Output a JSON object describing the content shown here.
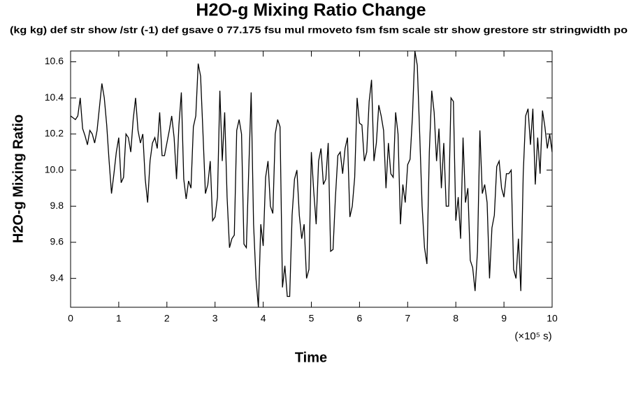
{
  "chart_data": {
    "type": "line",
    "title": "H2O-g Mixing Ratio Change",
    "subtitle": "(kg kg) def str show /str (-1) def gsave 0 77.175 fsu mul rmoveto fsm fsm scale str show grestore str stringwidth po",
    "x_label": "Time",
    "x_unit": "(×10⁵ s)",
    "y_label": "H2O-g Mixing Ratio",
    "color": "#000000",
    "xlim": [
      0,
      10
    ],
    "xticks": [
      0,
      1,
      2,
      3,
      4,
      5,
      6,
      7,
      8,
      9,
      10
    ],
    "ylim": [
      9.24,
      10.66
    ],
    "yticks": [
      {
        "value": 9.4,
        "label": "9.4"
      },
      {
        "value": 9.6,
        "label": "9.6"
      },
      {
        "value": 9.8,
        "label": "9.8"
      },
      {
        "value": 10.0,
        "label": "10.0"
      },
      {
        "value": 10.2,
        "label": "10.2"
      },
      {
        "value": 10.4,
        "label": "10.4"
      },
      {
        "value": 10.6,
        "label": "10.6"
      }
    ],
    "x": [
      0,
      0.05,
      0.1,
      0.15,
      0.2,
      0.25,
      0.3,
      0.35,
      0.4,
      0.45,
      0.5,
      0.55,
      0.6,
      0.65,
      0.7,
      0.75,
      0.8,
      0.85,
      0.9,
      0.95,
      1,
      1.05,
      1.1,
      1.15,
      1.2,
      1.25,
      1.3,
      1.35,
      1.4,
      1.45,
      1.5,
      1.55,
      1.6,
      1.65,
      1.7,
      1.75,
      1.8,
      1.85,
      1.9,
      1.95,
      2,
      2.05,
      2.1,
      2.15,
      2.2,
      2.25,
      2.3,
      2.35,
      2.4,
      2.45,
      2.5,
      2.55,
      2.6,
      2.65,
      2.7,
      2.75,
      2.8,
      2.85,
      2.9,
      2.95,
      3,
      3.05,
      3.1,
      3.15,
      3.2,
      3.25,
      3.3,
      3.35,
      3.4,
      3.45,
      3.5,
      3.55,
      3.6,
      3.65,
      3.7,
      3.75,
      3.8,
      3.85,
      3.9,
      3.95,
      4,
      4.05,
      4.1,
      4.15,
      4.2,
      4.25,
      4.3,
      4.35,
      4.4,
      4.45,
      4.5,
      4.55,
      4.6,
      4.65,
      4.7,
      4.75,
      4.8,
      4.85,
      4.9,
      4.95,
      5,
      5.05,
      5.1,
      5.15,
      5.2,
      5.25,
      5.3,
      5.35,
      5.4,
      5.45,
      5.5,
      5.55,
      5.6,
      5.65,
      5.7,
      5.75,
      5.8,
      5.85,
      5.9,
      5.95,
      6,
      6.05,
      6.1,
      6.15,
      6.2,
      6.25,
      6.3,
      6.35,
      6.4,
      6.45,
      6.5,
      6.55,
      6.6,
      6.65,
      6.7,
      6.75,
      6.8,
      6.85,
      6.9,
      6.95,
      7,
      7.05,
      7.1,
      7.15,
      7.2,
      7.25,
      7.3,
      7.35,
      7.4,
      7.45,
      7.5,
      7.55,
      7.6,
      7.65,
      7.7,
      7.75,
      7.8,
      7.85,
      7.9,
      7.95,
      8,
      8.05,
      8.1,
      8.15,
      8.2,
      8.25,
      8.3,
      8.35,
      8.4,
      8.45,
      8.5,
      8.55,
      8.6,
      8.65,
      8.7,
      8.75,
      8.8,
      8.85,
      8.9,
      8.95,
      9,
      9.05,
      9.1,
      9.15,
      9.2,
      9.25,
      9.3,
      9.35,
      9.4,
      9.45,
      9.5,
      9.55,
      9.6,
      9.65,
      9.7,
      9.75,
      9.8,
      9.85,
      9.9,
      9.95,
      10
    ],
    "values": [
      10.3,
      10.29,
      10.28,
      10.3,
      10.4,
      10.23,
      10.19,
      10.14,
      10.22,
      10.2,
      10.15,
      10.22,
      10.35,
      10.48,
      10.4,
      10.25,
      10.05,
      9.87,
      9.98,
      10.1,
      10.18,
      9.93,
      9.96,
      10.2,
      10.18,
      10.1,
      10.28,
      10.4,
      10.22,
      10.15,
      10.2,
      9.95,
      9.82,
      10.05,
      10.15,
      10.18,
      10.12,
      10.32,
      10.08,
      10.08,
      10.15,
      10.22,
      10.3,
      10.18,
      9.95,
      10.25,
      10.43,
      9.95,
      9.84,
      9.94,
      9.9,
      10.24,
      10.3,
      10.59,
      10.52,
      10.2,
      9.87,
      9.92,
      10.05,
      9.72,
      9.74,
      9.85,
      10.44,
      10.05,
      10.32,
      9.85,
      9.57,
      9.62,
      9.64,
      10.22,
      10.28,
      10.2,
      9.59,
      9.57,
      10.0,
      10.43,
      9.7,
      9.4,
      9.24,
      9.7,
      9.58,
      9.96,
      10.05,
      9.8,
      9.76,
      10.2,
      10.28,
      10.24,
      9.35,
      9.47,
      9.3,
      9.3,
      9.75,
      9.95,
      10.0,
      9.75,
      9.62,
      9.7,
      9.4,
      9.45,
      10.1,
      9.88,
      9.7,
      10.05,
      10.12,
      9.92,
      9.95,
      10.15,
      9.55,
      9.56,
      9.85,
      10.08,
      10.1,
      9.98,
      10.12,
      10.18,
      9.74,
      9.8,
      9.96,
      10.4,
      10.26,
      10.25,
      10.05,
      10.1,
      10.38,
      10.5,
      10.05,
      10.15,
      10.36,
      10.3,
      10.22,
      9.9,
      10.15,
      9.98,
      9.96,
      10.32,
      10.2,
      9.7,
      9.92,
      9.82,
      10.03,
      10.06,
      10.3,
      10.66,
      10.58,
      10.2,
      9.8,
      9.57,
      9.48,
      10.1,
      10.44,
      10.32,
      10.05,
      10.23,
      9.9,
      10.15,
      9.8,
      9.8,
      10.4,
      10.38,
      9.72,
      9.85,
      9.62,
      10.18,
      9.82,
      9.9,
      9.5,
      9.46,
      9.33,
      9.55,
      10.22,
      9.87,
      9.92,
      9.82,
      9.4,
      9.68,
      9.75,
      10.02,
      10.05,
      9.9,
      9.85,
      9.98,
      9.98,
      10.0,
      9.45,
      9.4,
      9.62,
      9.33,
      9.98,
      10.3,
      10.34,
      10.14,
      10.34,
      9.92,
      10.18,
      9.98,
      10.33,
      10.24,
      10.12,
      10.2,
      10.1
    ]
  }
}
